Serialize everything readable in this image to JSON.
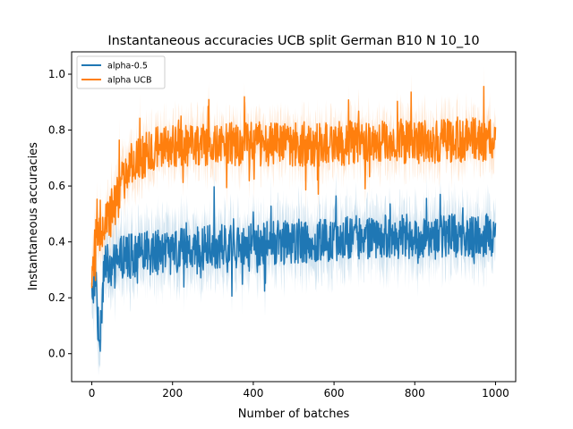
{
  "chart_data": {
    "type": "line",
    "title": "Instantaneous accuracies UCB split German B10 N 10_10",
    "xlabel": "Number of batches",
    "ylabel": "Instantaneous accuracies",
    "xlim": [
      -50,
      1050
    ],
    "ylim": [
      -0.1,
      1.08
    ],
    "xticks": [
      0,
      200,
      400,
      600,
      800,
      1000
    ],
    "xtick_labels": [
      "0",
      "200",
      "400",
      "600",
      "800",
      "1000"
    ],
    "yticks": [
      0.0,
      0.2,
      0.4,
      0.6,
      0.8,
      1.0
    ],
    "ytick_labels": [
      "0.0",
      "0.2",
      "0.4",
      "0.6",
      "0.8",
      "1.0"
    ],
    "grid": false,
    "legend_position": "top-left",
    "x_range": [
      0,
      1000
    ],
    "series": [
      {
        "name": "alpha-0.5",
        "color": "#1f77b4",
        "trend_x": [
          0,
          10,
          15,
          20,
          25,
          30,
          40,
          50,
          75,
          100,
          150,
          200,
          300,
          400,
          500,
          600,
          700,
          800,
          900,
          1000
        ],
        "trend_y": [
          0.22,
          0.3,
          0.12,
          0.06,
          0.18,
          0.3,
          0.32,
          0.3,
          0.35,
          0.35,
          0.36,
          0.37,
          0.38,
          0.39,
          0.4,
          0.41,
          0.42,
          0.42,
          0.42,
          0.42
        ],
        "band_halfwidth": 0.09
      },
      {
        "name": "alpha UCB",
        "color": "#ff7f0e",
        "trend_x": [
          0,
          10,
          20,
          30,
          50,
          75,
          100,
          150,
          200,
          300,
          400,
          500,
          600,
          700,
          800,
          900,
          1000
        ],
        "trend_y": [
          0.3,
          0.4,
          0.42,
          0.45,
          0.5,
          0.6,
          0.68,
          0.73,
          0.74,
          0.75,
          0.75,
          0.75,
          0.75,
          0.76,
          0.76,
          0.76,
          0.77
        ],
        "band_halfwidth": 0.07
      }
    ]
  }
}
